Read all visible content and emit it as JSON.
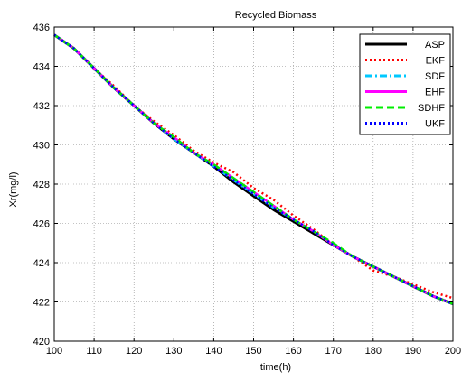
{
  "chart_data": {
    "type": "line",
    "title": "Recycled Biomass",
    "xlabel": "time(h)",
    "ylabel": "Xr(mg/l)",
    "xlim": [
      100,
      200
    ],
    "ylim": [
      420,
      436
    ],
    "x_ticks": [
      100,
      110,
      120,
      130,
      140,
      150,
      160,
      170,
      180,
      190,
      200
    ],
    "y_ticks": [
      420,
      422,
      424,
      426,
      428,
      430,
      432,
      434,
      436
    ],
    "grid": true,
    "legend_position": "top-right",
    "x": [
      100,
      105,
      110,
      115,
      120,
      125,
      130,
      135,
      140,
      145,
      150,
      155,
      160,
      165,
      170,
      175,
      180,
      185,
      190,
      195,
      200
    ],
    "series": [
      {
        "name": "ASP",
        "color": "#000000",
        "dash": "solid",
        "values": [
          435.6,
          434.9,
          433.9,
          432.9,
          432.0,
          431.1,
          430.3,
          429.6,
          428.9,
          428.1,
          427.4,
          426.7,
          426.1,
          425.5,
          424.9,
          424.3,
          423.8,
          423.3,
          422.8,
          422.3,
          421.9
        ]
      },
      {
        "name": "EKF",
        "color": "#ff0000",
        "dash": "dotted",
        "values": [
          435.6,
          434.9,
          433.9,
          433.0,
          432.0,
          431.2,
          430.5,
          429.7,
          429.1,
          428.6,
          427.8,
          427.2,
          426.4,
          425.7,
          424.9,
          424.3,
          423.6,
          423.3,
          422.9,
          422.5,
          422.2
        ]
      },
      {
        "name": "SDF",
        "color": "#00c8ff",
        "dash": "dashdot",
        "values": [
          435.6,
          434.9,
          433.9,
          432.9,
          432.0,
          431.1,
          430.3,
          429.6,
          428.9,
          428.2,
          427.5,
          426.8,
          426.2,
          425.6,
          424.9,
          424.3,
          423.8,
          423.3,
          422.8,
          422.3,
          421.9
        ]
      },
      {
        "name": "EHF",
        "color": "#ff00ff",
        "dash": "solid",
        "values": [
          435.6,
          434.9,
          433.9,
          432.9,
          432.0,
          431.1,
          430.4,
          429.6,
          429.0,
          428.3,
          427.6,
          426.9,
          426.2,
          425.6,
          424.9,
          424.3,
          423.8,
          423.3,
          422.8,
          422.3,
          421.9
        ]
      },
      {
        "name": "SDHF",
        "color": "#00ee00",
        "dash": "dashed",
        "values": [
          435.6,
          434.9,
          433.9,
          432.9,
          432.0,
          431.1,
          430.4,
          429.6,
          429.0,
          428.3,
          427.6,
          426.9,
          426.2,
          425.6,
          425.0,
          424.3,
          423.8,
          423.3,
          422.8,
          422.3,
          421.9
        ]
      },
      {
        "name": "UKF",
        "color": "#0000ff",
        "dash": "dotted",
        "values": [
          435.6,
          434.9,
          433.9,
          432.9,
          432.0,
          431.1,
          430.3,
          429.6,
          428.9,
          428.2,
          427.5,
          426.8,
          426.2,
          425.6,
          424.9,
          424.3,
          423.8,
          423.3,
          422.8,
          422.3,
          421.9
        ]
      }
    ]
  }
}
